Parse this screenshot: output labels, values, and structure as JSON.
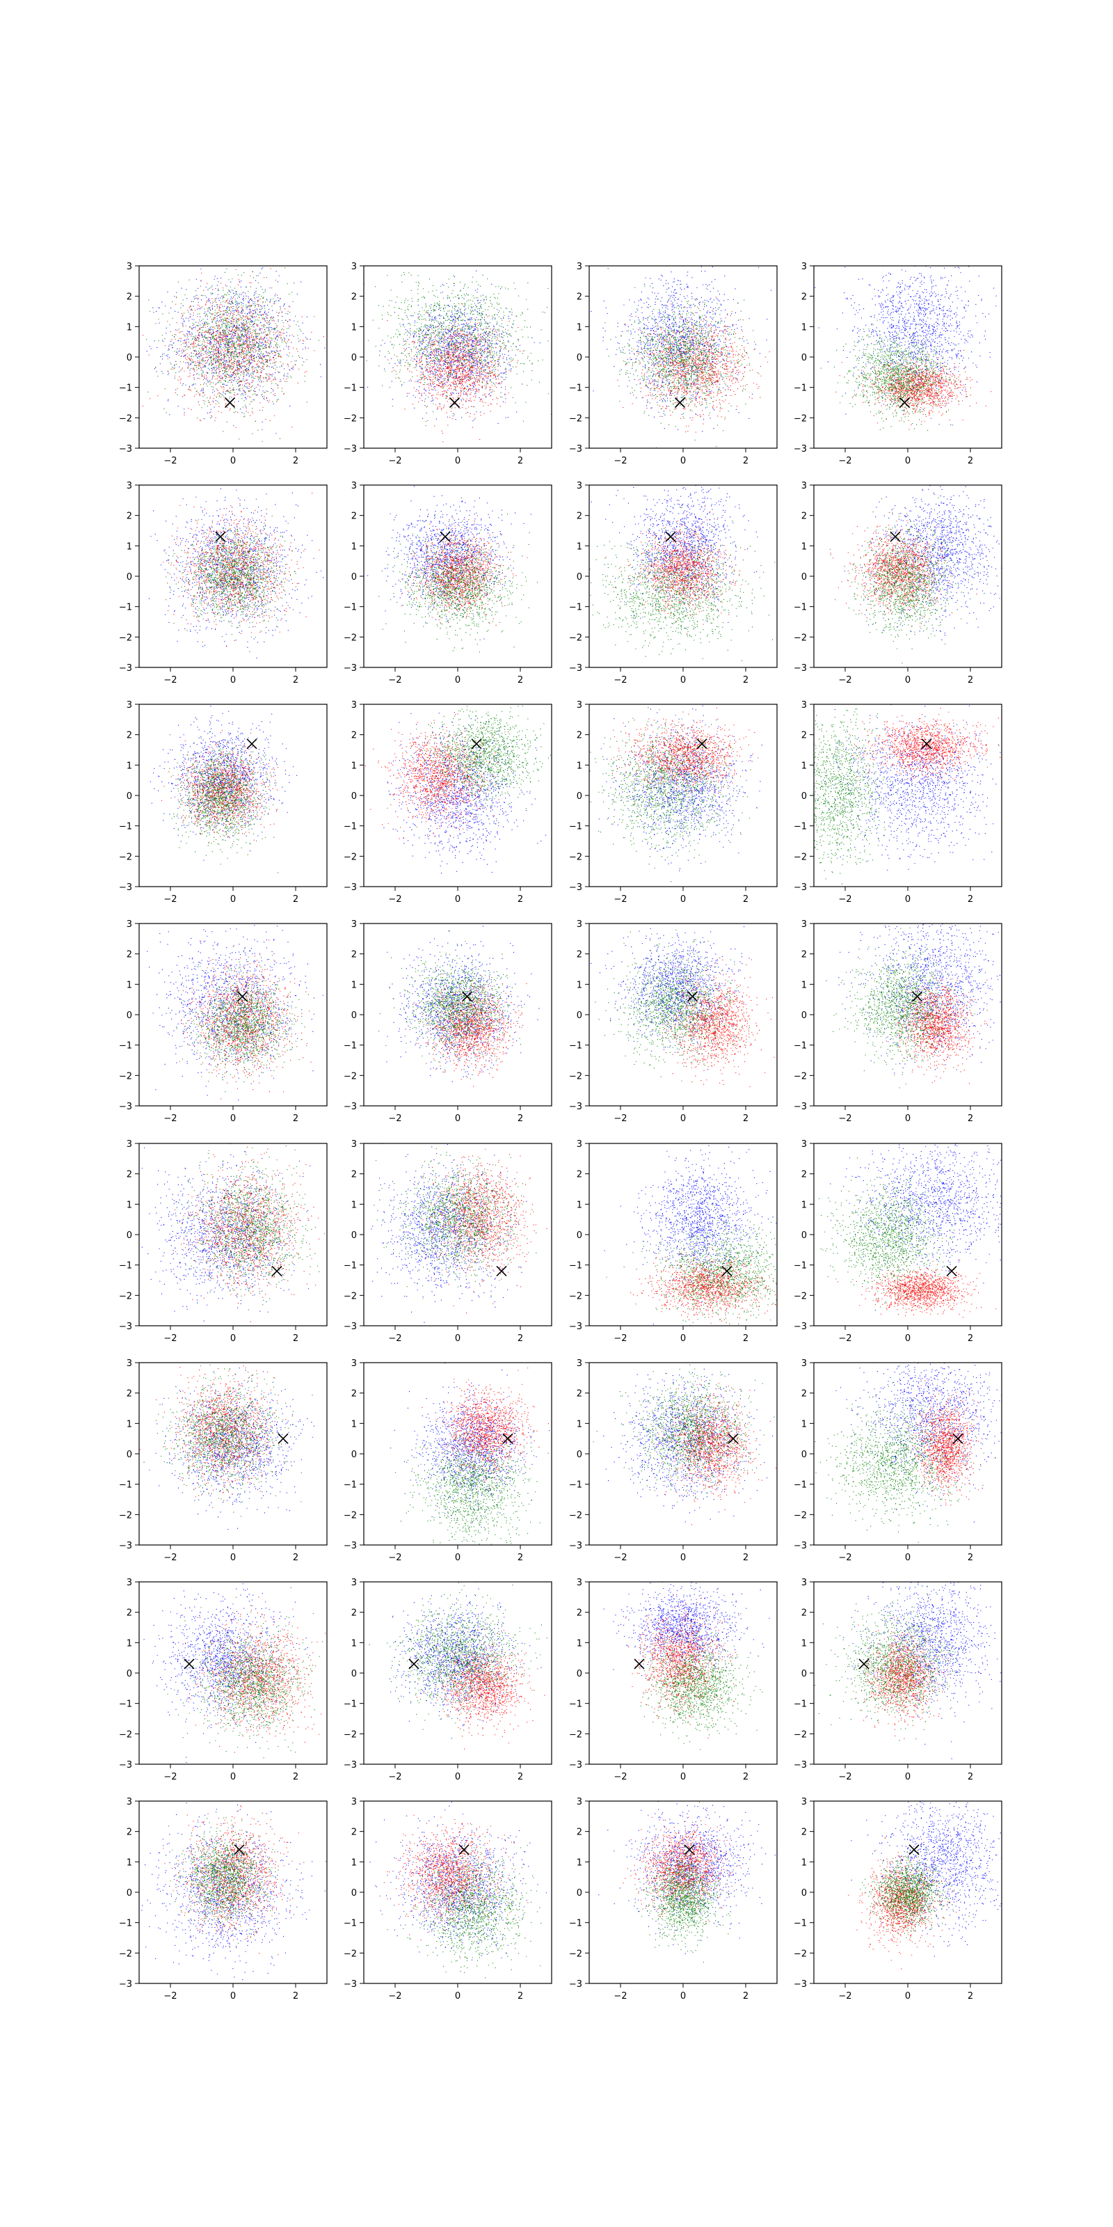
{
  "figure": {
    "rows": 8,
    "cols": 4,
    "points_per_cloud": 1200
  },
  "chart_data": {
    "type": "scatter",
    "series_colors": {
      "blue": "#0000ff",
      "red": "#ff0000",
      "green": "#008000"
    },
    "marker": {
      "symbol": "x",
      "color": "#000000"
    },
    "xlim": [
      -3,
      3
    ],
    "ylim": [
      -3,
      3
    ],
    "xticks": [
      -2,
      0,
      2
    ],
    "yticks": [
      -3,
      -2,
      -1,
      0,
      1,
      2,
      3
    ],
    "xtick_labels": [
      "−2",
      "0",
      "2"
    ],
    "ytick_labels": [
      "−3",
      "−2",
      "−1",
      "0",
      "1",
      "2",
      "3"
    ],
    "grid": false,
    "legend": "none",
    "rows": [
      {
        "marker": [
          -0.1,
          -1.5
        ],
        "panels": [
          {
            "blue": [
              0.0,
              0.5,
              1.0,
              1.0
            ],
            "red": [
              0.0,
              0.3,
              0.9,
              0.9
            ],
            "green": [
              0.0,
              0.4,
              0.9,
              0.9
            ]
          },
          {
            "blue": [
              0.0,
              0.2,
              0.8,
              0.8
            ],
            "red": [
              0.0,
              -0.3,
              0.7,
              0.7
            ],
            "green": [
              0.0,
              0.7,
              1.1,
              0.9
            ]
          },
          {
            "blue": [
              -0.1,
              0.5,
              0.9,
              1.0
            ],
            "red": [
              0.4,
              -0.3,
              0.8,
              0.7
            ],
            "green": [
              0.0,
              0.0,
              0.8,
              0.8
            ]
          },
          {
            "blue": [
              0.3,
              0.9,
              0.9,
              1.0
            ],
            "red": [
              0.3,
              -1.0,
              0.7,
              0.4
            ],
            "green": [
              -0.3,
              -0.6,
              0.7,
              0.6
            ]
          }
        ]
      },
      {
        "marker": [
          -0.4,
          1.3
        ],
        "panels": [
          {
            "blue": [
              0.0,
              0.3,
              1.0,
              1.0
            ],
            "red": [
              0.0,
              0.2,
              0.8,
              0.8
            ],
            "green": [
              0.0,
              0.0,
              0.7,
              0.7
            ]
          },
          {
            "blue": [
              -0.3,
              0.6,
              0.8,
              0.8
            ],
            "red": [
              0.0,
              0.1,
              0.6,
              0.6
            ],
            "green": [
              0.0,
              -0.3,
              0.8,
              0.7
            ]
          },
          {
            "blue": [
              0.0,
              1.0,
              0.8,
              0.9
            ],
            "red": [
              0.0,
              0.2,
              0.6,
              0.6
            ],
            "green": [
              -0.3,
              -0.6,
              1.1,
              0.8
            ]
          },
          {
            "blue": [
              1.0,
              0.8,
              0.9,
              1.0
            ],
            "red": [
              -0.3,
              0.2,
              0.6,
              0.6
            ],
            "green": [
              -0.1,
              -0.2,
              0.7,
              0.8
            ]
          }
        ]
      },
      {
        "marker": [
          0.6,
          1.7
        ],
        "panels": [
          {
            "blue": [
              -0.3,
              0.6,
              0.8,
              0.8
            ],
            "red": [
              -0.3,
              0.2,
              0.6,
              0.6
            ],
            "green": [
              -0.4,
              0.0,
              0.6,
              0.7
            ]
          },
          {
            "blue": [
              0.0,
              0.0,
              0.9,
              0.9
            ],
            "red": [
              -0.6,
              0.6,
              0.7,
              0.7
            ],
            "green": [
              0.8,
              1.3,
              0.8,
              0.7
            ]
          },
          {
            "blue": [
              0.0,
              0.3,
              0.9,
              0.9
            ],
            "red": [
              0.0,
              1.3,
              0.8,
              0.5
            ],
            "green": [
              -0.5,
              0.2,
              0.9,
              0.9
            ]
          },
          {
            "blue": [
              0.2,
              0.3,
              1.1,
              1.0
            ],
            "red": [
              0.6,
              1.6,
              0.8,
              0.4
            ],
            "green": [
              -2.3,
              0.2,
              0.7,
              1.2
            ]
          }
        ]
      },
      {
        "marker": [
          0.3,
          0.6
        ],
        "panels": [
          {
            "blue": [
              -0.1,
              0.3,
              1.0,
              1.0
            ],
            "red": [
              0.3,
              -0.2,
              0.7,
              0.8
            ],
            "green": [
              0.3,
              -0.3,
              0.7,
              0.7
            ]
          },
          {
            "blue": [
              0.0,
              0.2,
              0.8,
              0.9
            ],
            "red": [
              0.4,
              -0.4,
              0.6,
              0.6
            ],
            "green": [
              0.0,
              0.3,
              0.7,
              0.7
            ]
          },
          {
            "blue": [
              -0.2,
              0.9,
              0.8,
              0.8
            ],
            "red": [
              1.0,
              -0.3,
              0.6,
              0.7
            ],
            "green": [
              -0.3,
              0.3,
              0.8,
              0.8
            ]
          },
          {
            "blue": [
              0.8,
              1.0,
              1.0,
              1.1
            ],
            "red": [
              0.9,
              -0.3,
              0.5,
              0.6
            ],
            "green": [
              -0.2,
              0.3,
              0.7,
              0.8
            ]
          }
        ]
      },
      {
        "marker": [
          1.4,
          -1.2
        ],
        "panels": [
          {
            "blue": [
              -0.3,
              0.0,
              1.0,
              1.0
            ],
            "red": [
              0.4,
              0.2,
              0.8,
              0.9
            ],
            "green": [
              0.5,
              0.2,
              0.8,
              0.9
            ]
          },
          {
            "blue": [
              -0.4,
              0.2,
              0.9,
              1.0
            ],
            "red": [
              0.7,
              0.6,
              0.7,
              0.8
            ],
            "green": [
              0.0,
              0.5,
              0.8,
              0.8
            ]
          },
          {
            "blue": [
              0.5,
              0.5,
              0.8,
              0.9
            ],
            "red": [
              0.8,
              -1.7,
              0.8,
              0.4
            ],
            "green": [
              1.3,
              -1.2,
              1.0,
              0.7
            ]
          },
          {
            "blue": [
              0.8,
              1.1,
              1.1,
              1.0
            ],
            "red": [
              0.4,
              -1.8,
              0.7,
              0.3
            ],
            "green": [
              -0.6,
              -0.1,
              0.8,
              0.8
            ]
          }
        ]
      },
      {
        "marker": [
          1.6,
          0.5
        ],
        "panels": [
          {
            "blue": [
              0.0,
              0.3,
              0.9,
              0.9
            ],
            "red": [
              -0.3,
              0.8,
              0.7,
              0.8
            ],
            "green": [
              -0.3,
              0.6,
              0.8,
              0.8
            ]
          },
          {
            "blue": [
              0.4,
              0.2,
              0.8,
              0.8
            ],
            "red": [
              0.9,
              0.8,
              0.6,
              0.6
            ],
            "green": [
              0.5,
              -1.1,
              0.8,
              0.8
            ]
          },
          {
            "blue": [
              0.1,
              0.5,
              0.9,
              0.9
            ],
            "red": [
              0.9,
              0.3,
              0.6,
              0.7
            ],
            "green": [
              0.3,
              0.8,
              0.8,
              0.8
            ]
          },
          {
            "blue": [
              0.8,
              1.3,
              1.0,
              1.0
            ],
            "red": [
              1.2,
              0.3,
              0.4,
              0.7
            ],
            "green": [
              -0.4,
              -0.3,
              0.9,
              0.8
            ]
          }
        ]
      },
      {
        "marker": [
          -1.4,
          0.3
        ],
        "panels": [
          {
            "blue": [
              -0.3,
              0.5,
              0.9,
              0.9
            ],
            "red": [
              0.8,
              -0.2,
              0.8,
              0.8
            ],
            "green": [
              0.6,
              -0.3,
              0.8,
              0.8
            ]
          },
          {
            "blue": [
              0.0,
              0.5,
              0.8,
              0.8
            ],
            "red": [
              0.8,
              -0.4,
              0.6,
              0.6
            ],
            "green": [
              0.0,
              0.6,
              0.9,
              0.8
            ]
          },
          {
            "blue": [
              0.0,
              1.5,
              0.8,
              0.6
            ],
            "red": [
              -0.1,
              0.4,
              0.6,
              0.7
            ],
            "green": [
              0.4,
              -0.4,
              0.7,
              0.7
            ]
          },
          {
            "blue": [
              0.8,
              1.1,
              0.9,
              1.0
            ],
            "red": [
              -0.2,
              -0.1,
              0.5,
              0.6
            ],
            "green": [
              -0.4,
              0.3,
              0.8,
              0.8
            ]
          }
        ]
      },
      {
        "marker": [
          0.2,
          1.4
        ],
        "panels": [
          {
            "blue": [
              -0.2,
              0.0,
              1.0,
              1.0
            ],
            "red": [
              0.0,
              0.5,
              0.7,
              0.8
            ],
            "green": [
              -0.3,
              0.5,
              0.6,
              0.7
            ]
          },
          {
            "blue": [
              0.0,
              0.2,
              0.9,
              0.9
            ],
            "red": [
              -0.3,
              0.6,
              0.7,
              0.7
            ],
            "green": [
              0.5,
              -0.5,
              0.8,
              0.8
            ]
          },
          {
            "blue": [
              0.3,
              0.9,
              0.9,
              0.8
            ],
            "red": [
              0.0,
              0.8,
              0.6,
              0.6
            ],
            "green": [
              0.0,
              -0.2,
              0.5,
              0.6
            ]
          },
          {
            "blue": [
              1.1,
              1.0,
              0.9,
              1.0
            ],
            "red": [
              -0.2,
              -0.3,
              0.5,
              0.6
            ],
            "green": [
              0.0,
              0.0,
              0.5,
              0.5
            ]
          }
        ]
      }
    ]
  }
}
